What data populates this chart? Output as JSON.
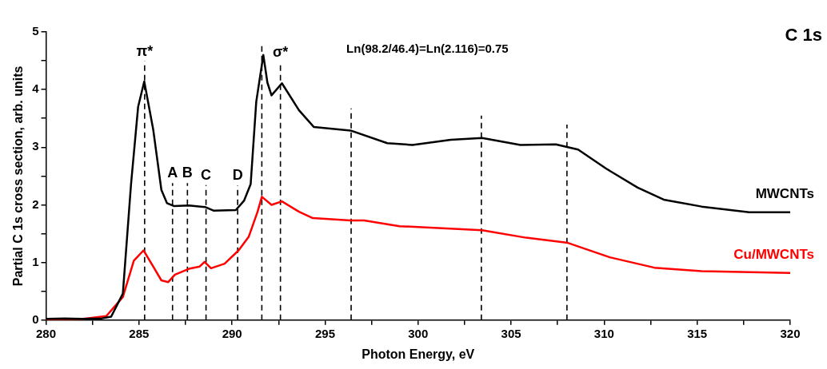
{
  "chart_data": {
    "type": "line",
    "title": "C 1s",
    "xlabel": "Photon Energy, eV",
    "ylabel": "Partial C 1s cross section, arb. units",
    "annotations": [
      "Ln(98.2/46.4)=Ln(2.116)=0.75"
    ],
    "series": [
      {
        "name": "MWCNTs",
        "color": "#000000",
        "x": [
          280,
          281,
          282,
          283,
          283.5,
          284.13,
          284.57,
          284.95,
          285.28,
          285.76,
          286.2,
          286.5,
          286.87,
          287.68,
          288.57,
          289.0,
          290.2,
          290.64,
          291.0,
          291.3,
          291.68,
          291.9,
          292.12,
          292.68,
          293.6,
          294.4,
          296.37,
          298.34,
          299.7,
          301.76,
          303.44,
          305.5,
          307.4,
          308.6,
          310.1,
          311.8,
          313.2,
          315.24,
          317.8,
          320
        ],
        "values": [
          0.02,
          0.03,
          0.02,
          0.03,
          0.06,
          0.46,
          2.36,
          3.7,
          4.14,
          3.31,
          2.26,
          2.03,
          1.98,
          1.99,
          1.96,
          1.9,
          1.91,
          2.07,
          2.36,
          3.79,
          4.6,
          4.12,
          3.9,
          4.11,
          3.64,
          3.35,
          3.29,
          3.07,
          3.04,
          3.13,
          3.16,
          3.04,
          3.05,
          2.96,
          2.63,
          2.3,
          2.09,
          1.97,
          1.87,
          1.87
        ]
      },
      {
        "name": "Cu/MWCNTs",
        "color": "#ff0000",
        "x": [
          280,
          282,
          283.24,
          284.13,
          284.72,
          285.24,
          285.76,
          286.2,
          286.57,
          286.93,
          287.68,
          288.26,
          288.52,
          288.87,
          289.6,
          290.35,
          290.9,
          291.37,
          291.6,
          292.12,
          292.68,
          293.6,
          294.34,
          296.37,
          297.1,
          299.0,
          303.44,
          305.8,
          308.05,
          310.3,
          312.7,
          315.24,
          320
        ],
        "values": [
          0.01,
          0.02,
          0.07,
          0.4,
          1.03,
          1.21,
          0.93,
          0.69,
          0.66,
          0.79,
          0.89,
          0.93,
          1.01,
          0.9,
          0.98,
          1.21,
          1.45,
          1.88,
          2.14,
          2.0,
          2.06,
          1.88,
          1.77,
          1.73,
          1.73,
          1.63,
          1.56,
          1.43,
          1.34,
          1.09,
          0.91,
          0.85,
          0.82
        ]
      }
    ],
    "xlim": [
      280,
      320
    ],
    "xticks": [
      280,
      {
        "value": 282.5,
        "label": null
      },
      285,
      {
        "value": 287.5,
        "label": null
      },
      290,
      {
        "value": 292.5,
        "label": null
      },
      295,
      {
        "value": 297.5,
        "label": null
      },
      300,
      {
        "value": 302.5,
        "label": null
      },
      305,
      {
        "value": 307.5,
        "label": null
      },
      310,
      {
        "value": 312.5,
        "label": null
      },
      315,
      {
        "value": 317.5,
        "label": null
      },
      320
    ],
    "ylim": [
      0,
      5
    ],
    "yticks": [
      0,
      {
        "value": 0.5,
        "label": null
      },
      1,
      {
        "value": 1.5,
        "label": null
      },
      2,
      {
        "value": 2.5,
        "label": null
      },
      3,
      {
        "value": 3.5,
        "label": null
      },
      4,
      {
        "value": 4.5,
        "label": null
      },
      5
    ],
    "ref_lines": [
      {
        "axis": "x",
        "value": 285.3,
        "label": "π*",
        "line_style": "dashed",
        "color": "#000000"
      },
      {
        "axis": "x",
        "value": 286.8,
        "label": "A",
        "line_style": "dashed",
        "color": "#000000"
      },
      {
        "axis": "x",
        "value": 287.6,
        "label": "B",
        "line_style": "dashed",
        "color": "#000000"
      },
      {
        "axis": "x",
        "value": 288.6,
        "label": "C",
        "line_style": "dashed",
        "color": "#000000"
      },
      {
        "axis": "x",
        "value": 290.3,
        "label": "D",
        "line_style": "dashed",
        "color": "#000000"
      },
      {
        "axis": "x",
        "value": 291.6,
        "line_style": "dashed",
        "color": "#000000"
      },
      {
        "axis": "x",
        "value": 292.6,
        "label": "σ*",
        "line_style": "dashed",
        "color": "#000000"
      },
      {
        "axis": "x",
        "value": 296.4,
        "line_style": "dashed",
        "color": "#000000"
      },
      {
        "axis": "x",
        "value": 303.4,
        "line_style": "dashed",
        "color": "#000000"
      },
      {
        "axis": "x",
        "value": 308.0,
        "line_style": "dashed",
        "color": "#000000"
      }
    ],
    "grid": false,
    "legend": false,
    "marker": "none",
    "line_style": "solid"
  }
}
